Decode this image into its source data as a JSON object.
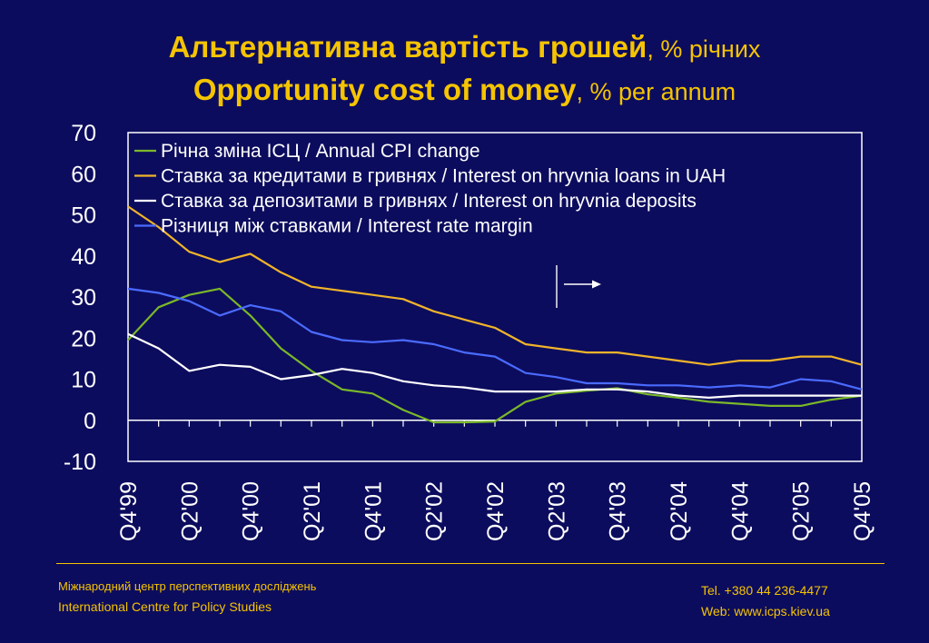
{
  "title": {
    "line1_strong": "Альтернативна вартість грошей",
    "line1_unit": ", % річних",
    "line2_strong": "Opportunity cost of money",
    "line2_unit": ", % per annum"
  },
  "colors": {
    "background": "#0c0c5e",
    "title": "#f5c400",
    "plot_border": "#ffffff",
    "text": "#ffffff"
  },
  "chart_data": {
    "type": "line",
    "x": [
      "Q4'99",
      "Q1'00",
      "Q2'00",
      "Q3'00",
      "Q4'00",
      "Q1'01",
      "Q2'01",
      "Q3'01",
      "Q4'01",
      "Q1'02",
      "Q2'02",
      "Q3'02",
      "Q4'02",
      "Q1'03",
      "Q2'03",
      "Q3'03",
      "Q4'03",
      "Q1'04",
      "Q2'04",
      "Q3'04",
      "Q4'04",
      "Q1'05",
      "Q2'05",
      "Q3'05",
      "Q4'05"
    ],
    "x_tick_labels": [
      "Q4'99",
      "Q2'00",
      "Q4'00",
      "Q2'01",
      "Q4'01",
      "Q2'02",
      "Q4'02",
      "Q2'03",
      "Q4'03",
      "Q2'04",
      "Q4'04",
      "Q2'05",
      "Q4'05"
    ],
    "ylim": [
      -10,
      70
    ],
    "y_ticks": [
      70,
      60,
      50,
      40,
      30,
      20,
      10,
      0,
      -10
    ],
    "grid": false,
    "legend_position": "top",
    "series": [
      {
        "name": "Річна зміна ІСЦ / Annual CPI change",
        "color": "#7ab829",
        "values": [
          19.5,
          27.5,
          30.5,
          32,
          25.5,
          17.5,
          12,
          7.5,
          6.5,
          2.5,
          -0.5,
          -0.5,
          -0.3,
          4.5,
          6.5,
          7.2,
          7.8,
          6.3,
          5.5,
          4.5,
          4,
          3.5,
          3.5,
          5,
          6
        ]
      },
      {
        "name": "Ставка за кредитами в гривнях / Interest on hryvnia loans in UAH",
        "color": "#f0b42a",
        "values": [
          52,
          47,
          41,
          38.5,
          40.5,
          36,
          32.5,
          31.5,
          30.5,
          29.5,
          26.5,
          24.5,
          22.5,
          18.5,
          17.5,
          16.5,
          16.5,
          15.5,
          14.5,
          13.5,
          14.5,
          14.5,
          15.5,
          15.5,
          13.5
        ]
      },
      {
        "name": "Ставка за депозитами в гривнях / Interest on hryvnia deposits",
        "color": "#ffffff",
        "values": [
          21,
          17.5,
          12,
          13.5,
          13,
          10,
          11,
          12.5,
          11.5,
          9.5,
          8.5,
          8,
          7,
          7,
          7,
          7.5,
          7.5,
          7,
          6,
          5.5,
          6,
          6,
          6,
          6,
          6
        ]
      },
      {
        "name": "Різниця між ставками / Interest rate margin",
        "color": "#4a6bff",
        "values": [
          32,
          31,
          29,
          25.5,
          28,
          26.5,
          21.5,
          19.5,
          19,
          19.5,
          18.5,
          16.5,
          15.5,
          11.5,
          10.5,
          9,
          9,
          8.5,
          8.5,
          8,
          8.5,
          8,
          10,
          9.5,
          7.5
        ]
      }
    ]
  },
  "footer": {
    "org_ua": "Міжнародний центр перспективних досліджень",
    "org_en": "International Centre for Policy Studies",
    "tel": "Tel. +380 44 236-4477",
    "web": "Web: www.icps.kiev.ua"
  }
}
